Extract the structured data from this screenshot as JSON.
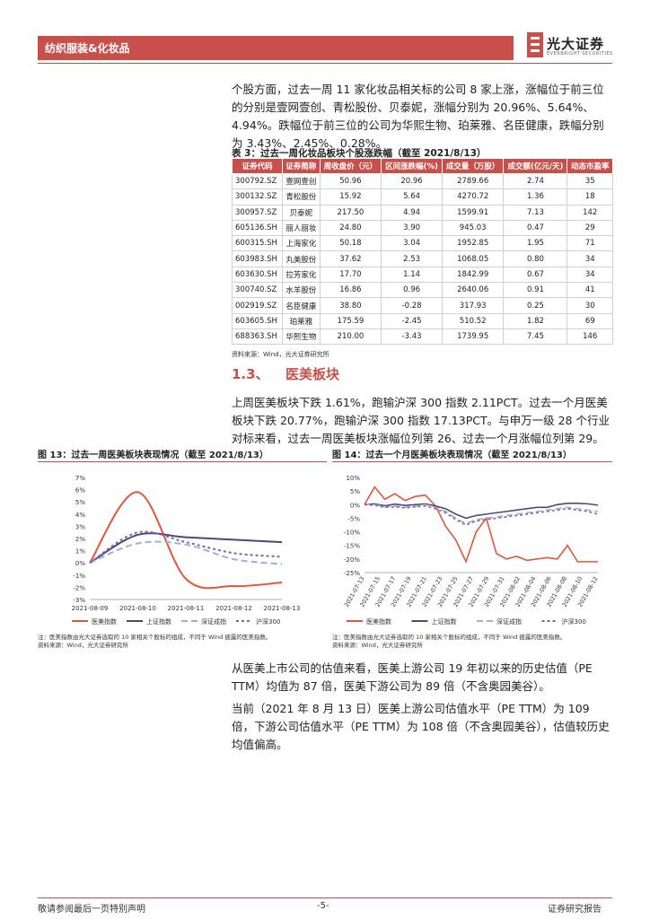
{
  "header": {
    "section_label": "纺织服装&化妆品",
    "logo_cn": "光大证券",
    "logo_en": "EVERBRIGHT SECURITIES"
  },
  "paragraphs": {
    "p1": "个股方面，过去一周 11 家化妆品相关标的公司 8 家上涨，涨幅位于前三位的分别是壹网壹创、青松股份、贝泰妮，涨幅分别为 20.96%、5.64%、4.94%。跌幅位于前三位的公司为华熙生物、珀莱雅、名臣健康，跌幅分别为 3.43%、2.45%、0.28%。",
    "p2": "上周医美板块下跌 1.61%，跑输沪深 300 指数 2.11PCT。过去一个月医美板块下跌 20.77%，跑输沪深 300 指数 17.13PCT。与申万一级 28 个行业对标来看，过去一周医美板块涨幅位列第 26、过去一个月涨幅位列第 29。",
    "p3": "从医美上市公司的估值来看，医美上游公司 19 年初以来的历史估值（PE TTM）均值为 87 倍，医美下游公司为 89 倍（不含奥园美谷）。",
    "p4": "当前（2021 年 8 月 13 日）医美上游公司估值水平（PE TTM）为 109 倍，下游公司估值水平（PE TTM）为 108 倍（不含奥园美谷），估值较历史均值偏高。"
  },
  "table3": {
    "title": "表 3：过去一周化妆品板块个股涨跌幅（截至 2021/8/13）",
    "headers": [
      "证券代码",
      "证券简称",
      "周收盘价（元）",
      "区间涨跌幅(%)",
      "成交量（万股）",
      "成交额(亿元/天)",
      "动态市盈率"
    ],
    "rows": [
      [
        "300792.SZ",
        "壹网壹创",
        "50.96",
        "20.96",
        "2789.66",
        "2.74",
        "35"
      ],
      [
        "300132.SZ",
        "青松股份",
        "15.92",
        "5.64",
        "4270.72",
        "1.36",
        "18"
      ],
      [
        "300957.SZ",
        "贝泰妮",
        "217.50",
        "4.94",
        "1599.91",
        "7.13",
        "142"
      ],
      [
        "605136.SH",
        "丽人丽妆",
        "24.80",
        "3.90",
        "945.03",
        "0.47",
        "29"
      ],
      [
        "600315.SH",
        "上海家化",
        "50.18",
        "3.04",
        "1952.85",
        "1.95",
        "71"
      ],
      [
        "603983.SH",
        "丸美股份",
        "37.62",
        "2.53",
        "1068.05",
        "0.80",
        "34"
      ],
      [
        "603630.SH",
        "拉芳家化",
        "17.70",
        "1.14",
        "1842.99",
        "0.67",
        "34"
      ],
      [
        "300740.SZ",
        "水羊股份",
        "16.86",
        "0.96",
        "2640.06",
        "0.91",
        "41"
      ],
      [
        "002919.SZ",
        "名臣健康",
        "38.80",
        "-0.28",
        "317.93",
        "0.25",
        "30"
      ],
      [
        "603605.SH",
        "珀莱雅",
        "175.59",
        "-2.45",
        "510.52",
        "1.82",
        "69"
      ],
      [
        "688363.SH",
        "华熙生物",
        "210.00",
        "-3.43",
        "1739.95",
        "7.45",
        "146"
      ]
    ],
    "source": "资料来源：Wind，光大证券研究所"
  },
  "section": {
    "number": "1.3、",
    "title": "医美板块"
  },
  "figures": {
    "fig13_title": "图 13：过去一周医美板块表现情况（截至 2021/8/13）",
    "fig14_title": "图 14：过去一个月医美板块表现情况（截至 2021/8/13）",
    "note": "注：医美指数由光大证券选取的 10 家相关个股标的组成，不同于 Wind 披露的医美指数。",
    "source": "资料来源：Wind，光大证券研究所"
  },
  "colors": {
    "brand": "#c9504a",
    "medical": "#e2553b",
    "shanghai": "#4a4a7a",
    "shenzhen": "#9bb3cf",
    "hs300": "#8a5fa8"
  },
  "chart_data": [
    {
      "type": "line",
      "title": "",
      "x": [
        "2021-08-09",
        "2021-08-10",
        "2021-08-11",
        "2021-08-12",
        "2021-08-13"
      ],
      "ylim": [
        -3,
        7
      ],
      "yticks": [
        "7%",
        "6%",
        "5%",
        "4%",
        "3%",
        "2%",
        "1%",
        "0%",
        "-1%",
        "-2%",
        "-3%"
      ],
      "legend_position": "bottom",
      "series": [
        {
          "name": "医美指数",
          "values": [
            0.0,
            5.8,
            -1.3,
            -1.9,
            -1.6
          ],
          "color": "#e2553b",
          "dash": "solid"
        },
        {
          "name": "上证指数",
          "values": [
            0.0,
            2.3,
            2.1,
            1.9,
            1.7
          ],
          "color": "#4a4a7a",
          "dash": "solid"
        },
        {
          "name": "深证成指",
          "values": [
            0.0,
            1.6,
            1.5,
            0.3,
            -0.1
          ],
          "color": "#9bb3cf",
          "dash": "long"
        },
        {
          "name": "沪深300",
          "values": [
            0.0,
            2.5,
            1.7,
            0.8,
            0.5
          ],
          "color": "#8a5fa8",
          "dash": "short"
        }
      ]
    },
    {
      "type": "line",
      "title": "",
      "x": [
        "2021-07-13",
        "2021-07-14",
        "2021-07-15",
        "2021-07-16",
        "2021-07-19",
        "2021-07-20",
        "2021-07-21",
        "2021-07-22",
        "2021-07-23",
        "2021-07-26",
        "2021-07-27",
        "2021-07-28",
        "2021-07-29",
        "2021-07-30",
        "2021-08-02",
        "2021-08-03",
        "2021-08-04",
        "2021-08-05",
        "2021-08-06",
        "2021-08-09",
        "2021-08-10",
        "2021-08-11",
        "2021-08-12",
        "2021-08-13"
      ],
      "xticks": [
        "2021-07-13",
        "2021-07-15",
        "2021-07-17",
        "2021-07-19",
        "2021-07-21",
        "2021-07-23",
        "2021-07-25",
        "2021-07-27",
        "2021-07-29",
        "2021-07-31",
        "2021-08-02",
        "2021-08-04",
        "2021-08-06",
        "2021-08-08",
        "2021-08-10",
        "2021-08-12"
      ],
      "ylim": [
        -25,
        10
      ],
      "yticks": [
        "10%",
        "5%",
        "0%",
        "-5%",
        "-10%",
        "-15%",
        "-20%",
        "-25%"
      ],
      "legend_position": "bottom",
      "series": [
        {
          "name": "医美指数",
          "values": [
            0.0,
            6.5,
            2.0,
            4.0,
            1.5,
            3.0,
            3.5,
            -0.5,
            -8.0,
            -13.0,
            -21.0,
            -10.0,
            -5.0,
            -18.0,
            -20.0,
            -19.0,
            -20.5,
            -20.0,
            -19.5,
            -20.0,
            -15.0,
            -21.0,
            -21.0,
            -21.0
          ],
          "color": "#e2553b",
          "dash": "solid"
        },
        {
          "name": "上证指数",
          "values": [
            0.0,
            0.3,
            -0.4,
            0.2,
            -0.3,
            0.0,
            0.3,
            -0.5,
            -1.5,
            -3.5,
            -5.0,
            -4.0,
            -3.5,
            -3.0,
            -2.5,
            -2.0,
            -1.5,
            -1.0,
            -1.0,
            0.0,
            0.5,
            0.5,
            0.3,
            -0.2
          ],
          "color": "#4a4a7a",
          "dash": "solid"
        },
        {
          "name": "深证成指",
          "values": [
            0.0,
            0.0,
            -0.8,
            -0.5,
            -1.0,
            -0.6,
            0.0,
            -1.0,
            -2.5,
            -5.0,
            -7.0,
            -5.5,
            -5.0,
            -4.5,
            -4.0,
            -3.5,
            -3.0,
            -2.5,
            -2.0,
            -1.5,
            -1.0,
            -1.5,
            -2.0,
            -2.5
          ],
          "color": "#9bb3cf",
          "dash": "long"
        },
        {
          "name": "沪深300",
          "values": [
            0.0,
            -0.2,
            -1.0,
            -0.8,
            -1.2,
            -0.8,
            -0.5,
            -1.5,
            -3.0,
            -5.5,
            -7.5,
            -6.0,
            -5.5,
            -5.0,
            -4.5,
            -4.0,
            -3.5,
            -3.0,
            -2.5,
            -2.0,
            -1.5,
            -2.0,
            -2.5,
            -3.5
          ],
          "color": "#8a5fa8",
          "dash": "short"
        }
      ]
    }
  ],
  "footer": {
    "left": "敬请参阅最后一页特别声明",
    "center": "-5-",
    "right": "证券研究报告"
  }
}
